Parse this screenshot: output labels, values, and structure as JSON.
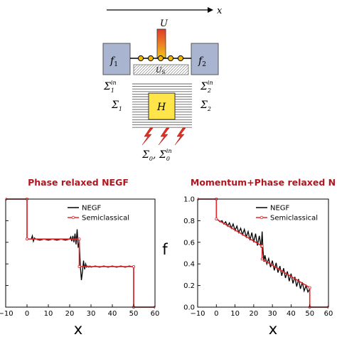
{
  "schematic": {
    "axis_label": "x",
    "potential_label": "U",
    "contact_left": "f",
    "contact_left_sub": "1",
    "contact_right": "f",
    "contact_right_sub": "2",
    "scatter_label": "U",
    "scatter_sub": "S",
    "hamiltonian": "H",
    "sigma_in_1": "Σ",
    "sigma_in_1_sub": "1",
    "sigma_in_1_sup": "in",
    "sigma_in_2": "Σ",
    "sigma_in_2_sub": "2",
    "sigma_in_2_sup": "in",
    "sigma_1": "Σ",
    "sigma_1_sub": "1",
    "sigma_2": "Σ",
    "sigma_2_sub": "2",
    "sigma_0_label": "Σ",
    "sigma_0_sub": "0",
    "sigma_0_sep": ", Σ",
    "sigma_0_in_sub": "0",
    "sigma_0_in_sup": "in",
    "colors": {
      "box": "#a8b4d0",
      "box_edge": "#555",
      "H_box": "#ffe54a",
      "bar_top": "#e03a2a",
      "bar_bottom": "#f4c21b",
      "lightning": "#e63020",
      "dot": "#f5b800"
    }
  },
  "chart_data": [
    {
      "type": "line",
      "title": "Phase relaxed NEGF",
      "xlabel": "x",
      "ylabel": "",
      "xlim": [
        -10,
        60
      ],
      "ylim": [
        0,
        1
      ],
      "xticks": [
        "−10",
        "0",
        "10",
        "20",
        "30",
        "40",
        "50",
        "60"
      ],
      "yticks": [
        "",
        "",
        "",
        "",
        "",
        ""
      ],
      "legend_position": "top-right",
      "series": [
        {
          "name": "NEGF",
          "color": "#000000",
          "x": [
            -10,
            0,
            0,
            2,
            2.5,
            3,
            3.5,
            4,
            6,
            8,
            10,
            12,
            14,
            16,
            18,
            20,
            20.5,
            21,
            21.5,
            22,
            22.5,
            23,
            23.5,
            24,
            24.5,
            25,
            25.5,
            26,
            26.5,
            27,
            27.5,
            28,
            28.5,
            29,
            29.5,
            30,
            32,
            34,
            36,
            38,
            40,
            42,
            44,
            46,
            48,
            50,
            50,
            60
          ],
          "y": [
            1,
            1,
            0.63,
            0.63,
            0.66,
            0.61,
            0.64,
            0.63,
            0.62,
            0.63,
            0.62,
            0.63,
            0.62,
            0.63,
            0.62,
            0.63,
            0.65,
            0.61,
            0.66,
            0.6,
            0.68,
            0.58,
            0.72,
            0.55,
            0.6,
            0.38,
            0.25,
            0.33,
            0.43,
            0.35,
            0.4,
            0.37,
            0.38,
            0.37,
            0.38,
            0.37,
            0.38,
            0.37,
            0.38,
            0.37,
            0.38,
            0.37,
            0.38,
            0.37,
            0.38,
            0.37,
            0,
            0
          ]
        },
        {
          "name": "Semiclassical",
          "color": "#e8262a",
          "x": [
            -10,
            0,
            0,
            24.5,
            24.5,
            50,
            50,
            60
          ],
          "y": [
            1,
            1,
            0.63,
            0.63,
            0.375,
            0.375,
            0,
            0
          ]
        }
      ]
    },
    {
      "type": "line",
      "title": "Momentum+Phase relaxed N",
      "xlabel": "x",
      "ylabel": "f",
      "xlim": [
        -10,
        60
      ],
      "ylim": [
        0,
        1
      ],
      "xticks": [
        "−10",
        "0",
        "10",
        "20",
        "30",
        "40",
        "50",
        "60"
      ],
      "yticks": [
        "0.0",
        "0.2",
        "0.4",
        "0.6",
        "0.8",
        "1.0"
      ],
      "legend_position": "top-right",
      "series": [
        {
          "name": "NEGF",
          "color": "#000000",
          "x": [
            -10,
            0,
            0,
            2,
            3,
            4,
            5,
            6,
            7,
            8,
            9,
            10,
            11,
            12,
            13,
            14,
            15,
            16,
            17,
            18,
            19,
            20,
            21,
            22,
            23,
            24,
            24.5,
            25,
            25.5,
            26,
            27,
            28,
            29,
            30,
            31,
            32,
            33,
            34,
            35,
            36,
            37,
            38,
            39,
            40,
            41,
            42,
            43,
            44,
            45,
            46,
            47,
            48,
            49,
            50,
            50,
            60
          ],
          "y": [
            1,
            1,
            0.82,
            0.79,
            0.8,
            0.77,
            0.79,
            0.75,
            0.78,
            0.73,
            0.77,
            0.71,
            0.75,
            0.69,
            0.73,
            0.67,
            0.72,
            0.65,
            0.7,
            0.62,
            0.69,
            0.6,
            0.68,
            0.57,
            0.66,
            0.55,
            0.7,
            0.52,
            0.42,
            0.48,
            0.4,
            0.45,
            0.37,
            0.43,
            0.34,
            0.41,
            0.32,
            0.38,
            0.29,
            0.36,
            0.27,
            0.33,
            0.24,
            0.31,
            0.22,
            0.28,
            0.19,
            0.26,
            0.17,
            0.23,
            0.15,
            0.2,
            0.14,
            0.17,
            0,
            0
          ]
        },
        {
          "name": "Semiclassical",
          "color": "#e8262a",
          "x": [
            -10,
            0,
            0,
            24.5,
            24.5,
            50,
            50,
            60
          ],
          "y": [
            1,
            1,
            0.815,
            0.565,
            0.445,
            0.18,
            0,
            0
          ]
        }
      ]
    }
  ]
}
